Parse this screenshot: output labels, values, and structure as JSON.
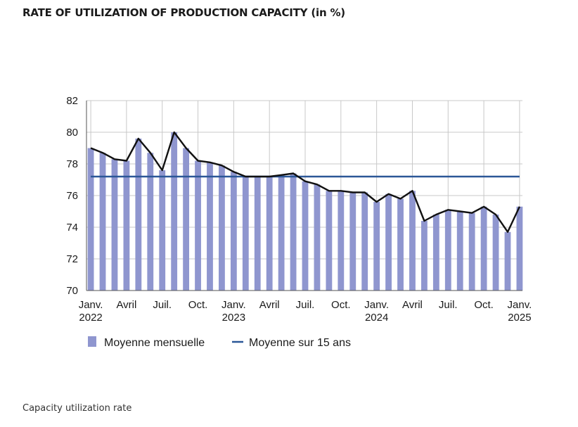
{
  "title": "RATE OF UTILIZATION OF PRODUCTION CAPACITY (in %)",
  "caption": "Capacity utilization rate",
  "colors": {
    "bars": "#8f96cf",
    "line": "#111111",
    "average": "#2b5797",
    "grid": "#c8c8c8"
  },
  "chart_data": {
    "type": "bar",
    "ylim": [
      70,
      82
    ],
    "yticks": [
      70,
      72,
      74,
      76,
      78,
      80,
      82
    ],
    "grid": true,
    "legend_position": "bottom-left",
    "x_labels": [
      {
        "index": 0,
        "line1": "Janv.",
        "line2": "2022"
      },
      {
        "index": 3,
        "line1": "Avril",
        "line2": ""
      },
      {
        "index": 6,
        "line1": "Juil.",
        "line2": ""
      },
      {
        "index": 9,
        "line1": "Oct.",
        "line2": ""
      },
      {
        "index": 12,
        "line1": "Janv.",
        "line2": "2023"
      },
      {
        "index": 15,
        "line1": "Avril",
        "line2": ""
      },
      {
        "index": 18,
        "line1": "Juil.",
        "line2": ""
      },
      {
        "index": 21,
        "line1": "Oct.",
        "line2": ""
      },
      {
        "index": 24,
        "line1": "Janv.",
        "line2": "2024"
      },
      {
        "index": 27,
        "line1": "Avril",
        "line2": ""
      },
      {
        "index": 30,
        "line1": "Juil.",
        "line2": ""
      },
      {
        "index": 33,
        "line1": "Oct.",
        "line2": ""
      },
      {
        "index": 36,
        "line1": "Janv.",
        "line2": "2025"
      }
    ],
    "series": [
      {
        "name": "Moyenne mensuelle",
        "type": "bar",
        "values": [
          79.0,
          78.7,
          78.3,
          78.2,
          79.6,
          78.7,
          77.6,
          80.0,
          79.0,
          78.2,
          78.1,
          77.9,
          77.5,
          77.2,
          77.2,
          77.2,
          77.3,
          77.4,
          76.9,
          76.7,
          76.3,
          76.3,
          76.2,
          76.2,
          75.6,
          76.1,
          75.8,
          76.3,
          74.4,
          74.8,
          75.1,
          75.0,
          74.9,
          75.3,
          74.8,
          73.7,
          75.3
        ]
      },
      {
        "name": "Moyenne sur 15 ans",
        "type": "hline",
        "value": 77.2
      }
    ]
  }
}
